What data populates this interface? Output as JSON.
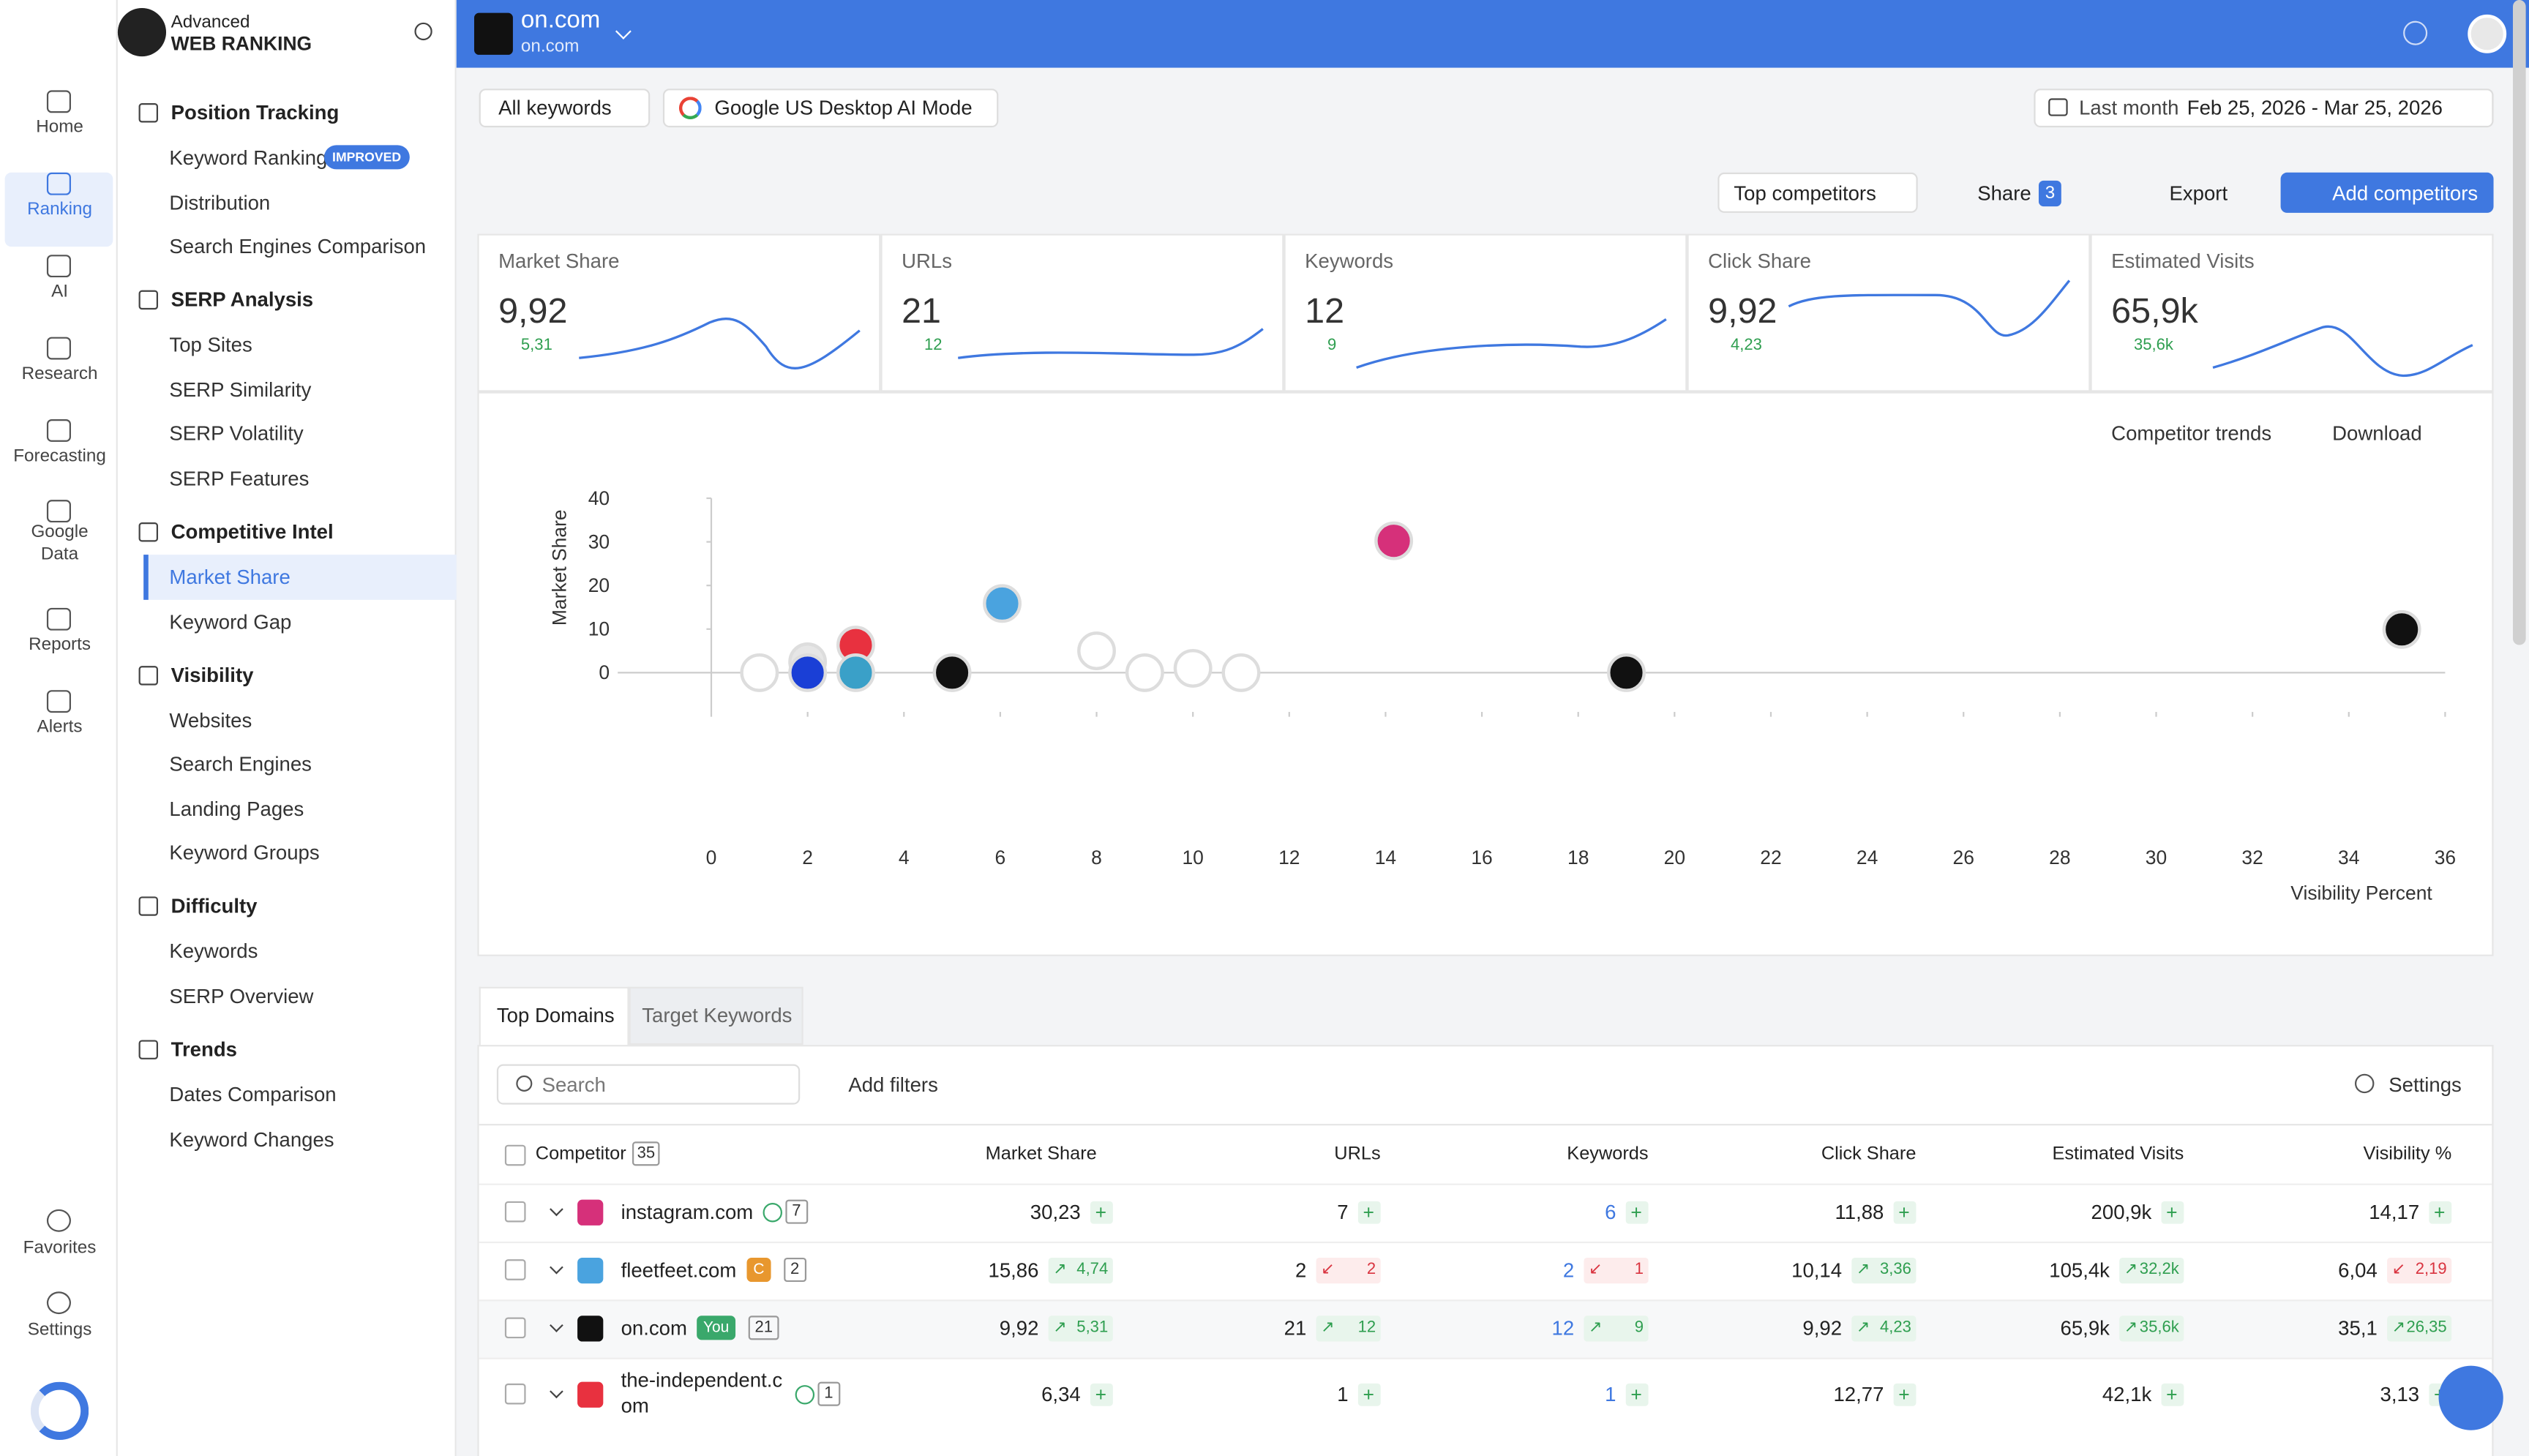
{
  "app": {
    "logo_top": "Advanced",
    "logo_bottom": "WEB RANKING"
  },
  "nav": [
    "Home",
    "Ranking",
    "AI",
    "Research",
    "Forecasting",
    "Google\nData",
    "Reports",
    "Alerts"
  ],
  "nav_bottom": [
    "Favorites",
    "Settings"
  ],
  "menu": [
    {
      "title": "Position Tracking",
      "items": [
        "Keyword Ranking",
        "Distribution",
        "Search Engines Comparison"
      ],
      "badge": "IMPROVED"
    },
    {
      "title": "SERP Analysis",
      "items": [
        "Top Sites",
        "SERP Similarity",
        "SERP Volatility",
        "SERP Features"
      ]
    },
    {
      "title": "Competitive Intel",
      "items": [
        "Market Share",
        "Keyword Gap"
      ]
    },
    {
      "title": "Visibility",
      "items": [
        "Websites",
        "Search Engines",
        "Landing Pages",
        "Keyword Groups"
      ]
    },
    {
      "title": "Difficulty",
      "items": [
        "Keywords",
        "SERP Overview"
      ]
    },
    {
      "title": "Trends",
      "items": [
        "Dates Comparison",
        "Keyword Changes"
      ]
    }
  ],
  "header": {
    "project": "on.com",
    "domain": "on.com"
  },
  "toolbar": {
    "keywords": "All keywords",
    "engine": "Google US Desktop AI Mode",
    "period": "Last month",
    "dates": "Feb 25, 2026 - Mar 25, 2026"
  },
  "actions": {
    "competitors": "Top competitors",
    "share": "Share",
    "share_count": "3",
    "export": "Export",
    "add": "Add competitors"
  },
  "metrics": [
    {
      "label": "Market Share",
      "value": "9,92",
      "change": "5,31"
    },
    {
      "label": "URLs",
      "value": "21",
      "change": "12"
    },
    {
      "label": "Keywords",
      "value": "12",
      "change": "9"
    },
    {
      "label": "Click Share",
      "value": "9,92",
      "change": "4,23"
    },
    {
      "label": "Estimated Visits",
      "value": "65,9k",
      "change": "35,6k"
    }
  ],
  "chart_controls": {
    "trends": "Competitor trends",
    "download": "Download"
  },
  "chart_data": {
    "type": "scatter",
    "xlabel": "Visibility Percent",
    "ylabel": "Market Share",
    "x": [
      1,
      2,
      2,
      3,
      3,
      5,
      6.04,
      8,
      9,
      10,
      11,
      14.17,
      19,
      35.1
    ],
    "values": [
      0,
      2.5,
      0,
      6.34,
      0,
      0,
      15.86,
      5,
      0,
      1,
      0,
      30.23,
      0,
      9.92
    ],
    "colors": [
      "#ffffff",
      "#e6e6e6",
      "#1a3fd6",
      "#e8313f",
      "#3aa0c8",
      "#111111",
      "#4aa3df",
      "#ffffff",
      "#ffffff",
      "#ffffff",
      "#ffffff",
      "#d6307a",
      "#111111",
      "#111111"
    ],
    "xlim": [
      0,
      36
    ],
    "xticks": [
      0,
      2,
      4,
      6,
      8,
      10,
      12,
      14,
      16,
      18,
      20,
      22,
      24,
      26,
      28,
      30,
      32,
      34,
      36
    ],
    "ylim": [
      -9,
      40
    ],
    "yticks": [
      0,
      10,
      20,
      30,
      40
    ]
  },
  "tabs": [
    "Top Domains",
    "Target Keywords"
  ],
  "table_tools": {
    "search": "Search",
    "filters": "Add filters",
    "settings": "Settings"
  },
  "table": {
    "first_column": "Competitor",
    "competitor_count": "35",
    "columns": [
      "Market Share",
      "URLs",
      "Keywords",
      "Click Share",
      "Estimated Visits",
      "Visibility %"
    ],
    "rows": [
      {
        "domain": "instagram.com",
        "count": "7",
        "cells": [
          {
            "value": "30,23"
          },
          {
            "value": "7"
          },
          {
            "value": "6"
          },
          {
            "value": "11,88"
          },
          {
            "value": "200,9k"
          },
          {
            "value": "14,17"
          }
        ]
      },
      {
        "domain": "fleetfeet.com",
        "badge": "C",
        "count": "2",
        "cells": [
          {
            "value": "15,86",
            "change": "4,74",
            "trend": "up"
          },
          {
            "value": "2",
            "change": "2",
            "trend": "down"
          },
          {
            "value": "2",
            "change": "1",
            "trend": "down"
          },
          {
            "value": "10,14",
            "change": "3,36",
            "trend": "up"
          },
          {
            "value": "105,4k",
            "change": "32,2k",
            "trend": "up"
          },
          {
            "value": "6,04",
            "change": "2,19",
            "trend": "down"
          }
        ]
      },
      {
        "domain": "on.com",
        "badge": "You",
        "count": "21",
        "cells": [
          {
            "value": "9,92",
            "change": "5,31",
            "trend": "up"
          },
          {
            "value": "21",
            "change": "12",
            "trend": "up"
          },
          {
            "value": "12",
            "change": "9",
            "trend": "up"
          },
          {
            "value": "9,92",
            "change": "4,23",
            "trend": "up"
          },
          {
            "value": "65,9k",
            "change": "35,6k",
            "trend": "up"
          },
          {
            "value": "35,1",
            "change": "26,35",
            "trend": "up"
          }
        ]
      },
      {
        "domain": "the-independent.com",
        "count": "1",
        "cells": [
          {
            "value": "6,34"
          },
          {
            "value": "1"
          },
          {
            "value": "1"
          },
          {
            "value": "12,77"
          },
          {
            "value": "42,1k"
          },
          {
            "value": "3,13"
          }
        ]
      }
    ]
  }
}
